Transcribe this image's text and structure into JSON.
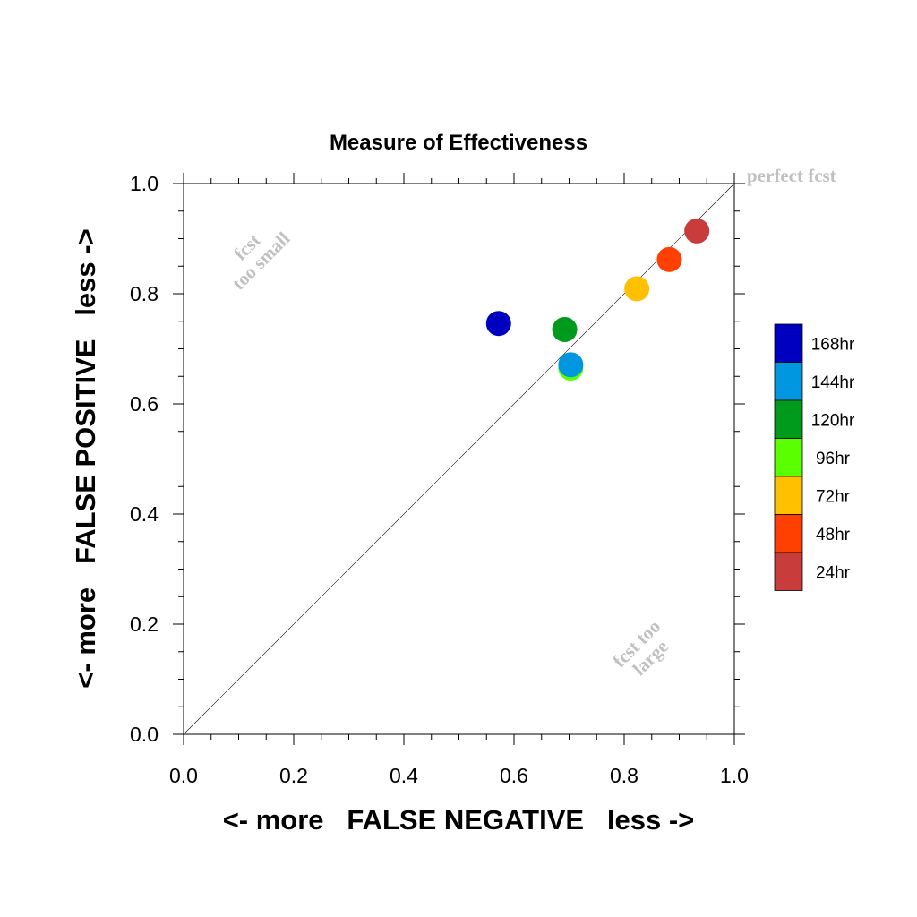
{
  "chart_data": {
    "type": "scatter",
    "title": "Measure of Effectiveness",
    "xlabel": "<- more   FALSE NEGATIVE   less ->",
    "ylabel": "<- more   FALSE POSITIVE   less ->",
    "xlim": [
      0.0,
      1.0
    ],
    "ylim": [
      0.0,
      1.0
    ],
    "xticks": [
      "0.0",
      "0.2",
      "0.4",
      "0.6",
      "0.8",
      "1.0"
    ],
    "yticks": [
      "0.0",
      "0.2",
      "0.4",
      "0.6",
      "0.8",
      "1.0"
    ],
    "tick_values": [
      0.0,
      0.2,
      0.4,
      0.6,
      0.8,
      1.0
    ],
    "grid": false,
    "reference_line": "diagonal",
    "annotations": {
      "top_right": "perfect fcst",
      "upper_left_line1": "fcst",
      "upper_left_line2": "too small",
      "lower_right_line1": "fcst too",
      "lower_right_line2": "large"
    },
    "legend_position": "right",
    "series": [
      {
        "name": "168hr",
        "color": "#0000c0",
        "x": 0.572,
        "y": 0.746
      },
      {
        "name": "144hr",
        "color": "#0097e0",
        "x": 0.703,
        "y": 0.671
      },
      {
        "name": "120hr",
        "color": "#009a1c",
        "x": 0.692,
        "y": 0.735
      },
      {
        "name": "96hr",
        "color": "#5aff00",
        "x": 0.703,
        "y": 0.665
      },
      {
        "name": "72hr",
        "color": "#ffc000",
        "x": 0.823,
        "y": 0.809
      },
      {
        "name": "48hr",
        "color": "#ff4000",
        "x": 0.882,
        "y": 0.862
      },
      {
        "name": "24hr",
        "color": "#c83c3c",
        "x": 0.932,
        "y": 0.914
      }
    ]
  }
}
